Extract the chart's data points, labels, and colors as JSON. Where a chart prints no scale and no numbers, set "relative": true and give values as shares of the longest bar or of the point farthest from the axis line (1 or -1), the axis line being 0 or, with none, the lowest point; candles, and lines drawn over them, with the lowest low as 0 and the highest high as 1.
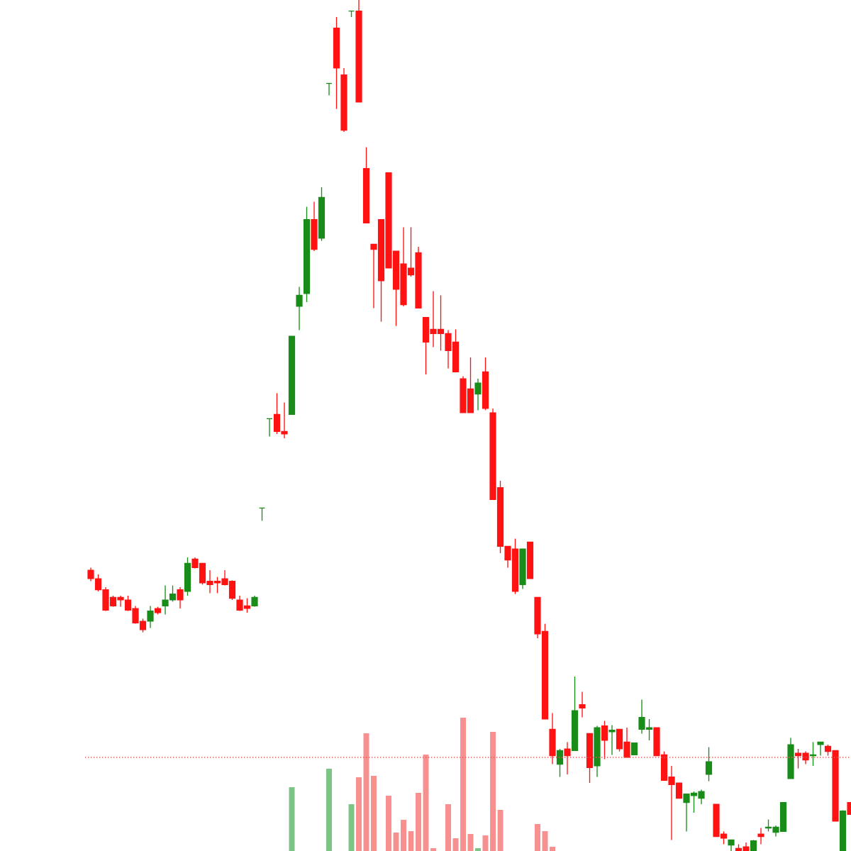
{
  "chart_data": [
    {
      "type": "candlestick",
      "relative": true,
      "categories": [
        null,
        null,
        null,
        null,
        null,
        null,
        null,
        null,
        null,
        null,
        null,
        null,
        null,
        null,
        null,
        null,
        null,
        null,
        null,
        null,
        null,
        null,
        null,
        null,
        null,
        null,
        null,
        null,
        null,
        null,
        null,
        null,
        null,
        null,
        null,
        null,
        null,
        null,
        null,
        null,
        null,
        null,
        null,
        null,
        null,
        null,
        null,
        null,
        null,
        null,
        null,
        null,
        null,
        null,
        null,
        null,
        null,
        null,
        null,
        null,
        null,
        null,
        null,
        null,
        null,
        null,
        null,
        null,
        null,
        null,
        null,
        null,
        null,
        null,
        null,
        null,
        null,
        null,
        null,
        null,
        null,
        null,
        null,
        null,
        null,
        null,
        null,
        null,
        null,
        null,
        null,
        null,
        null,
        null,
        null,
        null,
        null,
        null,
        null,
        null,
        null,
        null,
        null
      ],
      "ohlc": [
        [
          0.33,
          0.333,
          0.317,
          0.32
        ],
        [
          0.32,
          0.325,
          0.305,
          0.307
        ],
        [
          0.307,
          0.31,
          0.282,
          0.283
        ],
        [
          0.298,
          0.3,
          0.287,
          0.288
        ],
        [
          0.298,
          0.3,
          0.287,
          0.295
        ],
        [
          0.295,
          0.3,
          0.282,
          0.283
        ],
        [
          0.285,
          0.288,
          0.267,
          0.268
        ],
        [
          0.27,
          0.273,
          0.257,
          0.26
        ],
        [
          0.27,
          0.288,
          0.262,
          0.282
        ],
        [
          0.285,
          0.287,
          0.278,
          0.28
        ],
        [
          0.288,
          0.312,
          0.278,
          0.295
        ],
        [
          0.295,
          0.312,
          0.293,
          0.302
        ],
        [
          0.307,
          0.31,
          0.285,
          0.295
        ],
        [
          0.305,
          0.345,
          0.3,
          0.338
        ],
        [
          0.343,
          0.345,
          0.332,
          0.333
        ],
        [
          0.338,
          0.338,
          0.313,
          0.315
        ],
        [
          0.317,
          0.33,
          0.303,
          0.313
        ],
        [
          0.317,
          0.322,
          0.303,
          0.315
        ],
        [
          0.32,
          0.33,
          0.312,
          0.313
        ],
        [
          0.317,
          0.318,
          0.295,
          0.297
        ],
        [
          0.295,
          0.3,
          0.282,
          0.283
        ],
        [
          0.288,
          0.297,
          0.28,
          0.285
        ],
        [
          0.288,
          0.3,
          0.287,
          0.298
        ],
        [
          0.403,
          0.403,
          0.388,
          0.403
        ],
        [
          0.508,
          0.508,
          0.487,
          0.508
        ],
        [
          0.513,
          0.538,
          0.49,
          0.493
        ],
        [
          0.493,
          0.527,
          0.485,
          0.49
        ],
        [
          0.513,
          0.605,
          0.513,
          0.605
        ],
        [
          0.64,
          0.663,
          0.612,
          0.653
        ],
        [
          0.655,
          0.757,
          0.645,
          0.742
        ],
        [
          0.742,
          0.763,
          0.705,
          0.707
        ],
        [
          0.72,
          0.78,
          0.717,
          0.768
        ],
        [
          0.902,
          0.902,
          0.888,
          0.902
        ],
        [
          0.967,
          0.98,
          0.872,
          0.92
        ],
        [
          0.912,
          0.92,
          0.845,
          0.847
        ],
        [
          0.987,
          0.987,
          0.98,
          0.987
        ],
        [
          0.987,
          1,
          0.88,
          0.88
        ],
        [
          0.802,
          0.827,
          0.738,
          0.738
        ],
        [
          0.713,
          0.713,
          0.638,
          0.707
        ],
        [
          0.742,
          0.742,
          0.622,
          0.67
        ],
        [
          0.797,
          0.797,
          0.685,
          0.685
        ],
        [
          0.705,
          0.705,
          0.617,
          0.66
        ],
        [
          0.69,
          0.733,
          0.64,
          0.642
        ],
        [
          0.685,
          0.733,
          0.675,
          0.677
        ],
        [
          0.703,
          0.71,
          0.638,
          0.638
        ],
        [
          0.627,
          0.627,
          0.56,
          0.598
        ],
        [
          0.613,
          0.658,
          0.592,
          0.608
        ],
        [
          0.613,
          0.653,
          0.588,
          0.608
        ],
        [
          0.608,
          0.612,
          0.567,
          0.588
        ],
        [
          0.598,
          0.613,
          0.563,
          0.563
        ],
        [
          0.555,
          0.558,
          0.515,
          0.515
        ],
        [
          0.543,
          0.58,
          0.515,
          0.515
        ],
        [
          0.537,
          0.555,
          0.518,
          0.55
        ],
        [
          0.563,
          0.58,
          0.518,
          0.52
        ],
        [
          0.515,
          0.52,
          0.413,
          0.413
        ],
        [
          0.427,
          0.435,
          0.35,
          0.358
        ],
        [
          0.358,
          0.358,
          0.333,
          0.342
        ],
        [
          0.355,
          0.367,
          0.302,
          0.305
        ],
        [
          0.313,
          0.355,
          0.308,
          0.355
        ],
        [
          0.363,
          0.363,
          0.32,
          0.32
        ],
        [
          0.298,
          0.298,
          0.25,
          0.255
        ],
        [
          0.258,
          0.267,
          0.155,
          0.155
        ],
        [
          0.143,
          0.162,
          0.102,
          0.112
        ],
        [
          0.102,
          0.12,
          0.087,
          0.118
        ],
        [
          0.12,
          0.128,
          0.09,
          0.112
        ],
        [
          0.118,
          0.205,
          0.118,
          0.165
        ],
        [
          0.172,
          0.187,
          0.157,
          0.168
        ],
        [
          0.138,
          0.138,
          0.08,
          0.098
        ],
        [
          0.1,
          0.147,
          0.087,
          0.145
        ],
        [
          0.147,
          0.153,
          0.108,
          0.13
        ],
        [
          0.14,
          0.148,
          0.113,
          0.142
        ],
        [
          0.143,
          0.143,
          0.117,
          0.12
        ],
        [
          0.128,
          0.145,
          0.11,
          0.11
        ],
        [
          0.113,
          0.127,
          0.113,
          0.127
        ],
        [
          0.143,
          0.178,
          0.138,
          0.157
        ],
        [
          0.143,
          0.155,
          0.13,
          0.145
        ],
        [
          0.145,
          0.145,
          0.112,
          0.112
        ],
        [
          0.113,
          0.117,
          0.083,
          0.083
        ],
        [
          0.087,
          0.1,
          0.013,
          0.078
        ],
        [
          0.08,
          0.08,
          0.062,
          0.062
        ],
        [
          0.057,
          0.067,
          0.023,
          0.067
        ],
        [
          0.065,
          0.07,
          0.045,
          0.068
        ],
        [
          0.062,
          0.072,
          0.055,
          0.07
        ],
        [
          0.09,
          0.122,
          0.082,
          0.105
        ],
        [
          0.055,
          0.055,
          0.017,
          0.017
        ],
        [
          0.02,
          0.023,
          0.008,
          0.015
        ],
        [
          0.007,
          0.013,
          0,
          0.013
        ],
        [
          0.003,
          0.008,
          0,
          0
        ],
        [
          0.005,
          0.01,
          0,
          0
        ],
        [
          0,
          0.013,
          0,
          0.012
        ],
        [
          0.02,
          0.027,
          0.008,
          0.017
        ],
        [
          0.027,
          0.037,
          0.023,
          0.028
        ],
        [
          0.022,
          0.03,
          0.017,
          0.028
        ],
        [
          0.023,
          0.057,
          0.023,
          0.057
        ],
        [
          0.085,
          0.133,
          0.085,
          0.125
        ],
        [
          0.115,
          0.12,
          0.097,
          0.112
        ],
        [
          0.115,
          0.117,
          0.102,
          0.107
        ],
        [
          0.112,
          0.128,
          0.1,
          0.113
        ],
        [
          0.125,
          0.128,
          0.112,
          0.128
        ],
        [
          0.123,
          0.125,
          0.112,
          0.117
        ],
        [
          0.118,
          0.118,
          0.035,
          0.035
        ],
        [
          0,
          0.048,
          0,
          0.047
        ],
        [
          0.057,
          0.057,
          0.043,
          0.043
        ]
      ],
      "colors": [
        "#ff1212",
        "#ff1212",
        "#ff1212",
        "#ff1212",
        "#ff1212",
        "#ff1212",
        "#ff1212",
        "#ff1212",
        "#1a8c1a",
        "#ff1212",
        "#1a8c1a",
        "#1a8c1a",
        "#ff1212",
        "#1a8c1a",
        "#ff1212",
        "#ff1212",
        "#ff1212",
        "#ff1212",
        "#ff1212",
        "#ff1212",
        "#ff1212",
        "#ff1212",
        "#1a8c1a",
        "#1a8c1a",
        "#1a8c1a",
        "#ff1212",
        "#ff1212",
        "#1a8c1a",
        "#1a8c1a",
        "#1a8c1a",
        "#ff1212",
        "#1a8c1a",
        "#1a8c1a",
        "#ff1212",
        "#ff1212",
        "#1a8c1a",
        "#ff1212",
        "#ff1212",
        "#ff1212",
        "#ff1212",
        "#ff1212",
        "#ff1212",
        "#ff1212",
        "#ff1212",
        "#ff1212",
        "#ff1212",
        "#ff1212",
        "#ff1212",
        "#ff1212",
        "#ff1212",
        "#ff1212",
        "#ff1212",
        "#1a8c1a",
        "#ff1212",
        "#ff1212",
        "#ff1212",
        "#ff1212",
        "#ff1212",
        "#1a8c1a",
        "#ff1212",
        "#ff1212",
        "#ff1212",
        "#ff1212",
        "#1a8c1a",
        "#ff1212",
        "#1a8c1a",
        "#ff1212",
        "#ff1212",
        "#1a8c1a",
        "#ff1212",
        "#1a8c1a",
        "#ff1212",
        "#ff1212",
        "#1a8c1a",
        "#1a8c1a",
        "#1a8c1a",
        "#ff1212",
        "#ff1212",
        "#ff1212",
        "#ff1212",
        "#1a8c1a",
        "#1a8c1a",
        "#1a8c1a",
        "#1a8c1a",
        "#ff1212",
        "#ff1212",
        "#1a8c1a",
        "#ff1212",
        "#ff1212",
        "#1a8c1a",
        "#ff1212",
        "#1a8c1a",
        "#1a8c1a",
        "#1a8c1a",
        "#1a8c1a",
        "#ff1212",
        "#ff1212",
        "#1a8c1a",
        "#1a8c1a",
        "#ff1212",
        "#ff1212",
        "#1a8c1a",
        "#ff1212"
      ],
      "ref_lines": [
        {
          "axis": "y",
          "value": 0.11,
          "color": "#e05a5a",
          "line_style": "dotted"
        }
      ]
    },
    {
      "type": "bar",
      "relative": true,
      "categories": [
        null,
        null,
        null,
        null,
        null,
        null,
        null,
        null,
        null,
        null,
        null,
        null,
        null,
        null,
        null,
        null,
        null,
        null,
        null,
        null,
        null,
        null,
        null,
        null,
        null,
        null,
        null,
        null,
        null,
        null,
        null,
        null,
        null,
        null,
        null,
        null,
        null,
        null,
        null,
        null,
        null,
        null,
        null,
        null,
        null,
        null,
        null,
        null,
        null,
        null,
        null,
        null,
        null,
        null,
        null,
        null,
        null,
        null,
        null,
        null,
        null,
        null,
        null,
        null,
        null,
        null,
        null,
        null,
        null,
        null,
        null,
        null,
        null,
        null,
        null,
        null,
        null,
        null,
        null,
        null,
        null,
        null,
        null,
        null,
        null,
        null,
        null,
        null,
        null,
        null,
        null,
        null,
        null,
        null,
        null,
        null,
        null,
        null,
        null,
        null,
        null,
        null,
        null
      ],
      "values": [
        null,
        null,
        null,
        null,
        null,
        null,
        null,
        null,
        null,
        null,
        null,
        null,
        null,
        null,
        null,
        null,
        null,
        null,
        null,
        null,
        null,
        null,
        null,
        null,
        null,
        null,
        null,
        0.479,
        null,
        null,
        null,
        null,
        0.617,
        null,
        null,
        0.351,
        0.553,
        0.883,
        0.564,
        null,
        0.415,
        0.138,
        0.234,
        0.149,
        0.436,
        0.723,
        0.021,
        null,
        0.351,
        0.096,
        1,
        0.128,
        0.021,
        0.117,
        0.894,
        0.309,
        null,
        null,
        null,
        null,
        0.202,
        0.149,
        0.032,
        null,
        null,
        null,
        null,
        null,
        null,
        null,
        null,
        null,
        null,
        null,
        null,
        null,
        null,
        null,
        null,
        null,
        null,
        null,
        null,
        null,
        null,
        null,
        null,
        null,
        null,
        null,
        null,
        null,
        null,
        null,
        null,
        null,
        null,
        null,
        null,
        null,
        null,
        null,
        null
      ],
      "colors": [
        null,
        null,
        null,
        null,
        null,
        null,
        null,
        null,
        null,
        null,
        null,
        null,
        null,
        null,
        null,
        null,
        null,
        null,
        null,
        null,
        null,
        null,
        null,
        null,
        null,
        null,
        null,
        "#7cc488",
        null,
        null,
        null,
        null,
        "#7cc488",
        null,
        null,
        "#7cc488",
        "#f89090",
        "#f89090",
        "#f89090",
        null,
        "#f89090",
        "#f89090",
        "#f89090",
        "#f89090",
        "#f89090",
        "#f89090",
        "#f89090",
        null,
        "#f89090",
        "#f89090",
        "#f89090",
        "#f89090",
        "#7cc488",
        "#f89090",
        "#f89090",
        "#f89090",
        null,
        null,
        null,
        null,
        "#f89090",
        "#f89090",
        "#f89090",
        null,
        null,
        null,
        null,
        null,
        null,
        null,
        null,
        null,
        null,
        null,
        null,
        null,
        null,
        null,
        null,
        null,
        null,
        null,
        null,
        null,
        null,
        null,
        null,
        null,
        null,
        null,
        null,
        null,
        null,
        null,
        null,
        null,
        null,
        null,
        null,
        null,
        null,
        null,
        null
      ]
    }
  ]
}
